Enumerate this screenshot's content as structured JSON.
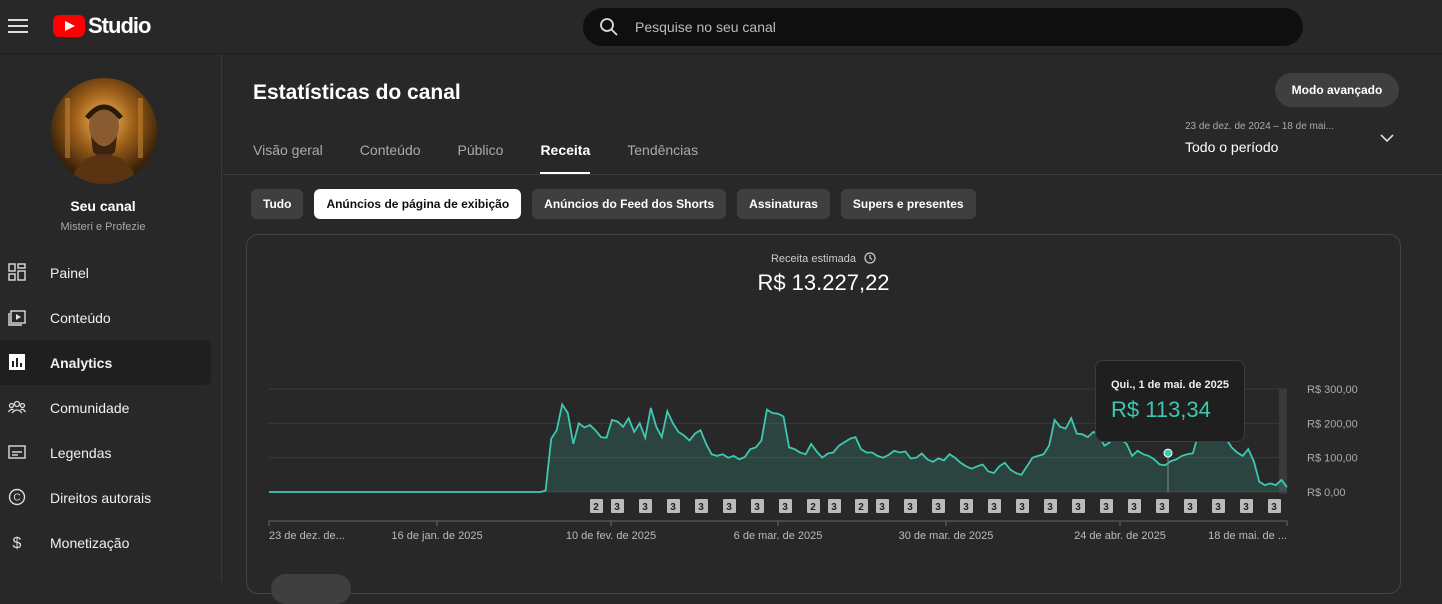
{
  "header": {
    "logo_text": "Studio",
    "search_placeholder": "Pesquise no seu canal"
  },
  "sidebar": {
    "channel_name": "Seu canal",
    "channel_sub": "Misteri e Profezie",
    "items": [
      {
        "label": "Painel",
        "icon": "dashboard-icon",
        "active": false
      },
      {
        "label": "Conteúdo",
        "icon": "content-icon",
        "active": false
      },
      {
        "label": "Analytics",
        "icon": "analytics-icon",
        "active": true
      },
      {
        "label": "Comunidade",
        "icon": "community-icon",
        "active": false
      },
      {
        "label": "Legendas",
        "icon": "subtitles-icon",
        "active": false
      },
      {
        "label": "Direitos autorais",
        "icon": "copyright-icon",
        "active": false
      },
      {
        "label": "Monetização",
        "icon": "monetization-icon",
        "active": false
      }
    ]
  },
  "main": {
    "title": "Estatísticas do canal",
    "advanced_button": "Modo avançado",
    "tabs": [
      {
        "label": "Visão geral",
        "active": false
      },
      {
        "label": "Conteúdo",
        "active": false
      },
      {
        "label": "Público",
        "active": false
      },
      {
        "label": "Receita",
        "active": true
      },
      {
        "label": "Tendências",
        "active": false
      }
    ],
    "period": {
      "range": "23 de dez. de 2024 – 18 de mai...",
      "selected": "Todo o período"
    },
    "chips": [
      {
        "label": "Tudo",
        "active": false
      },
      {
        "label": "Anúncios de página de exibição",
        "active": true
      },
      {
        "label": "Anúncios do Feed dos Shorts",
        "active": false
      },
      {
        "label": "Assinaturas",
        "active": false
      },
      {
        "label": "Supers e presentes",
        "active": false
      }
    ],
    "metric": {
      "label": "Receita estimada",
      "value": "R$ 13.227,22"
    },
    "tooltip": {
      "date": "Qui., 1 de mai. de 2025",
      "value": "R$ 113,34"
    }
  },
  "colors": {
    "accent": "#3ec8b1",
    "background": "#282828",
    "brand_red": "#ff0000"
  },
  "chart_data": {
    "type": "area",
    "x_start": "2024-12-23",
    "x_end": "2025-05-18",
    "xtick_labels": [
      "23 de dez. de...",
      "16 de jan. de 2025",
      "10 de fev. de 2025",
      "6 de mar. de 2025",
      "30 de mar. de 2025",
      "24 de abr. de 2025",
      "18 de mai. de ..."
    ],
    "ytick_labels": [
      "R$ 300,00",
      "R$ 200,00",
      "R$ 100,00",
      "R$ 0,00"
    ],
    "ylim": [
      0,
      300
    ],
    "series": [
      {
        "values": [
          0,
          0,
          0,
          0,
          0,
          0,
          0,
          0,
          0,
          0,
          0,
          0,
          0,
          0,
          0,
          0,
          0,
          0,
          0,
          0,
          0,
          0,
          0,
          0,
          0,
          0,
          0,
          0,
          0,
          0,
          0,
          0,
          0,
          0,
          0,
          0,
          0,
          0,
          0,
          0,
          0,
          0,
          0,
          0,
          0,
          0,
          0,
          0,
          0,
          0,
          4,
          155,
          180,
          255,
          230,
          140,
          200,
          188,
          195,
          180,
          160,
          158,
          210,
          205,
          190,
          215,
          175,
          200,
          158,
          245,
          190,
          160,
          235,
          200,
          175,
          165,
          150,
          170,
          180,
          140,
          110,
          105,
          110,
          100,
          105,
          95,
          102,
          125,
          130,
          150,
          240,
          230,
          228,
          220,
          130,
          125,
          115,
          110,
          140,
          118,
          100,
          112,
          115,
          135,
          145,
          155,
          160,
          125,
          115,
          115,
          105,
          100,
          108,
          120,
          115,
          118,
          98,
          100,
          112,
          95,
          88,
          98,
          92,
          110,
          100,
          85,
          75,
          68,
          75,
          80,
          60,
          55,
          75,
          85,
          65,
          55,
          50,
          75,
          100,
          105,
          110,
          135,
          210,
          190,
          185,
          215,
          170,
          168,
          160,
          175,
          165,
          135,
          145,
          170,
          155,
          140,
          105,
          120,
          110,
          105,
          95,
          80,
          78,
          90,
          95,
          105,
          110,
          113,
          170,
          220,
          190,
          175,
          175,
          155,
          130,
          115,
          105,
          125,
          90,
          30,
          20,
          25,
          20,
          35,
          14
        ]
      }
    ],
    "marker_badges": [
      "2",
      "3",
      "3",
      "3",
      "3",
      "3",
      "3",
      "3",
      "2",
      "3",
      "2",
      "3",
      "3",
      "3",
      "3",
      "3",
      "3",
      "3",
      "3",
      "3",
      "3",
      "3",
      "3",
      "3",
      "3",
      "3",
      "3"
    ]
  }
}
